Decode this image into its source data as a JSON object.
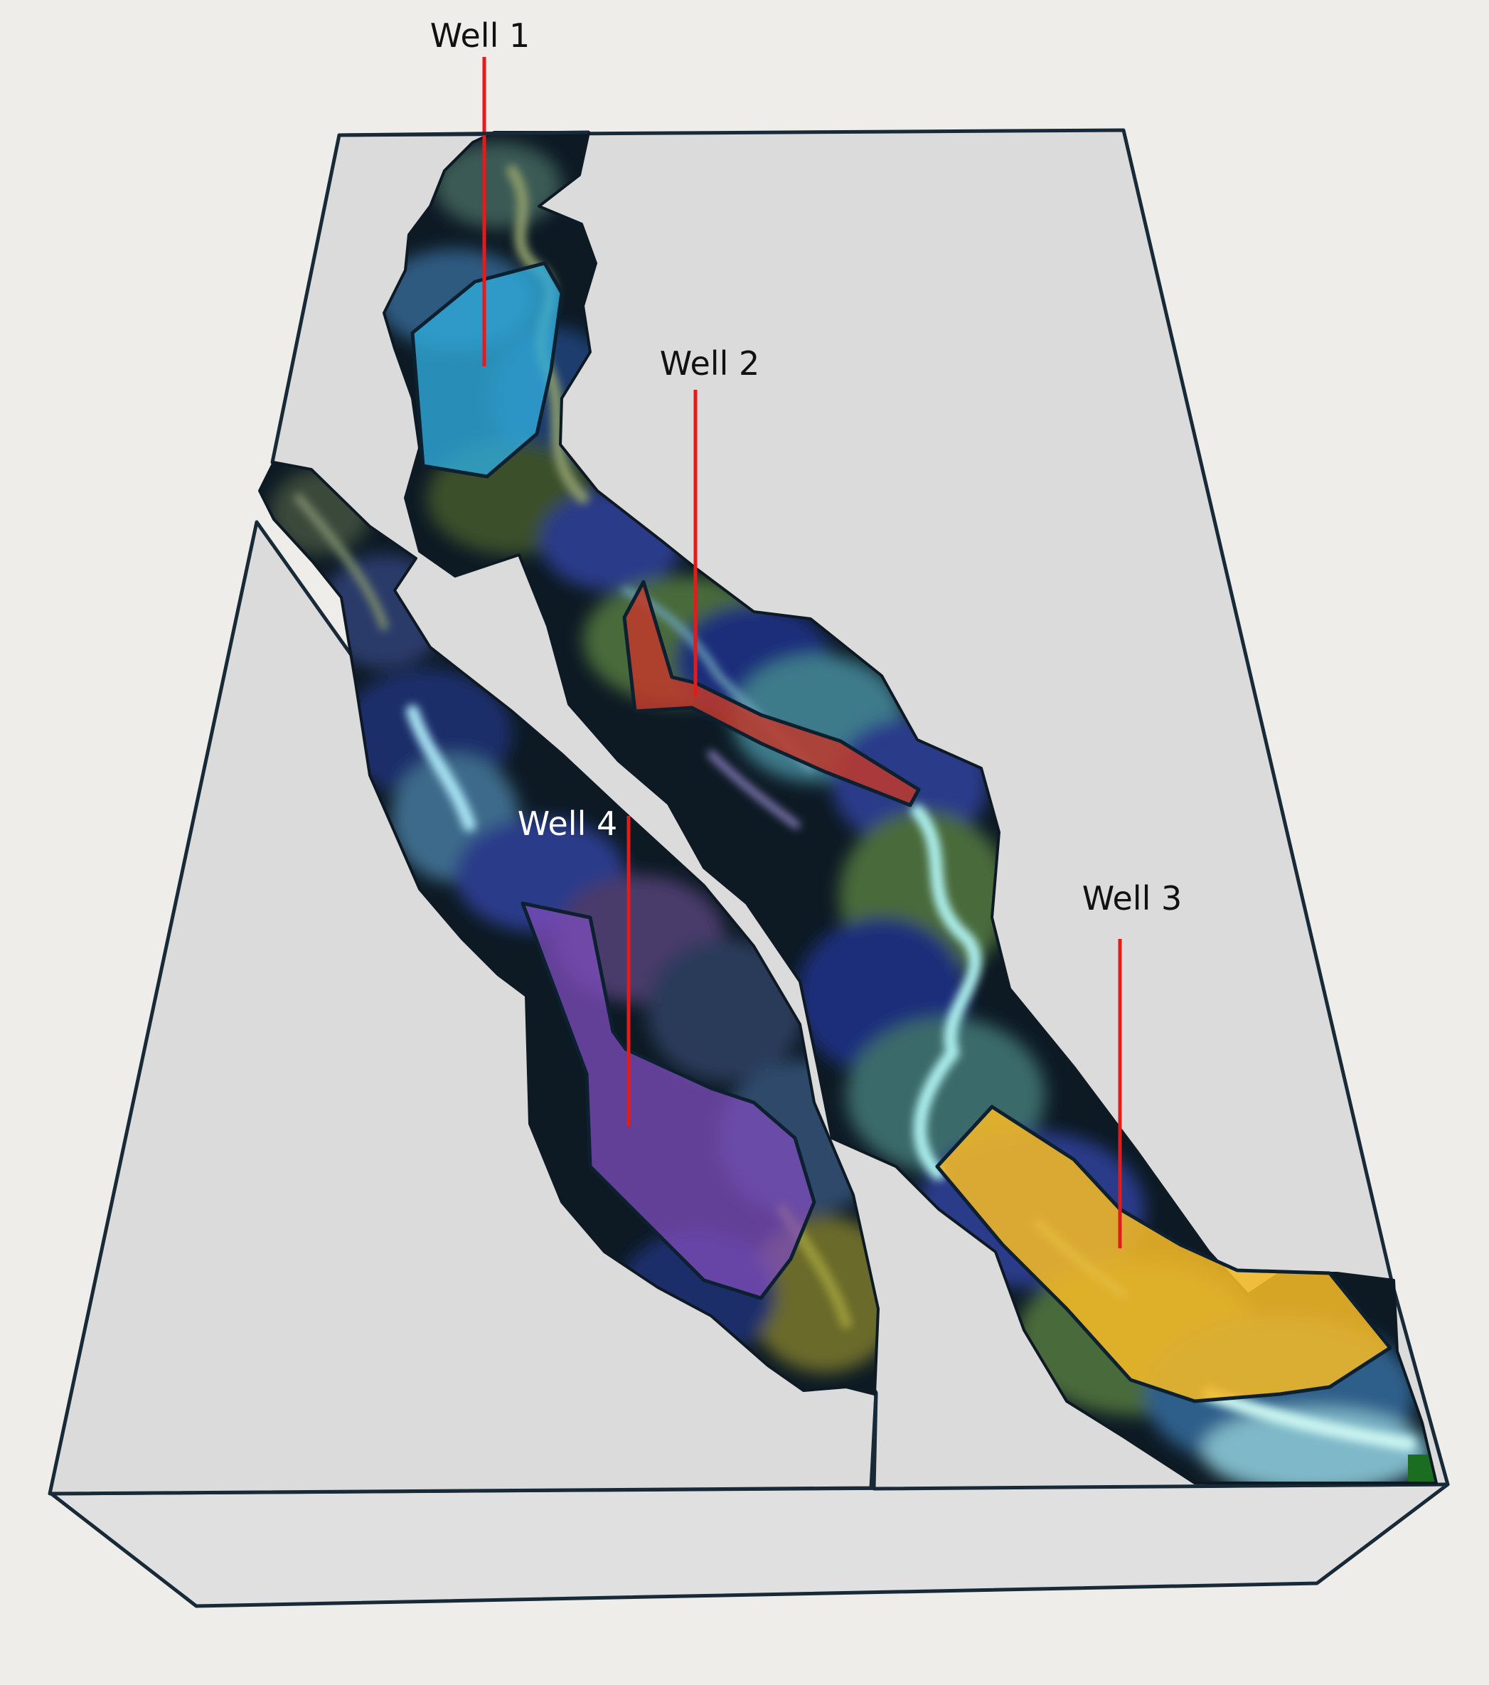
{
  "wells": [
    {
      "id": "well-1",
      "label": "Well 1",
      "zone_color": "#2fa8d8"
    },
    {
      "id": "well-2",
      "label": "Well 2",
      "zone_color": "#c0392b"
    },
    {
      "id": "well-3",
      "label": "Well 3",
      "zone_color": "#f2b827"
    },
    {
      "id": "well-4",
      "label": "Well 4",
      "zone_color": "#7b4bb8"
    }
  ],
  "colors": {
    "background": "#efedea",
    "block_top": "#dcdbdb",
    "block_front": "#e1e0e0",
    "block_outline": "#182a38",
    "well_line": "#e31b1b",
    "channel_dark": "#0d1a24",
    "label_dark": "#111111",
    "label_light": "#ffffff"
  }
}
